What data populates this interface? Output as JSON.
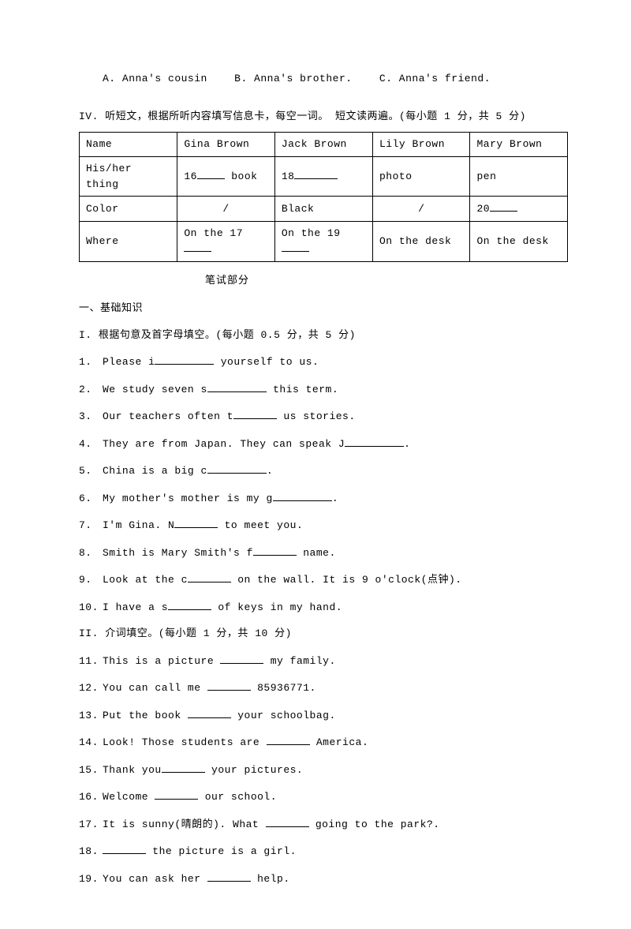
{
  "mc": {
    "optA": "A. Anna's cousin",
    "optB": "B. Anna's brother.",
    "optC": "C. Anna's friend."
  },
  "sectionIV": "IV. 听短文，根据所听内容填写信息卡，每空一词。 短文读两遍。(每小题 1 分，共 5 分)",
  "table": {
    "r0c0": "Name",
    "r0c1": "Gina Brown",
    "r0c2": "Jack Brown",
    "r0c3": "Lily Brown",
    "r0c4": "Mary Brown",
    "r1c0": "His/her thing",
    "r1c1a": "16",
    "r1c1b": " book",
    "r1c2a": "18",
    "r1c3": "photo",
    "r1c4": "pen",
    "r2c0": "Color",
    "r2c1": "/",
    "r2c2": "Black",
    "r2c3": "/",
    "r2c4a": "20",
    "r3c0": "Where",
    "r3c1a": "On the 17",
    "r3c2a": "On the 19",
    "r3c3": "On the desk",
    "r3c4": "On the desk"
  },
  "writtenTitle": "笔试部分",
  "partA": "一、基础知识",
  "partI": "I.  根据句意及首字母填空。(每小题 0.5 分，共 5 分)",
  "q": {
    "1n": "1.",
    "1a": "Please i",
    "1b": " yourself to us.",
    "2n": "2.",
    "2a": "We study seven s",
    "2b": " this term.",
    "3n": "3.",
    "3a": "Our teachers often t",
    "3b": " us stories.",
    "4n": "4.",
    "4a": "They are from Japan. They can speak J",
    "4b": ".",
    "5n": "5.",
    "5a": "China is a big c",
    "5b": ".",
    "6n": "6.",
    "6a": "My mother's mother is my g",
    "6b": ".",
    "7n": "7.",
    "7a": "I'm Gina. N",
    "7b": " to meet you.",
    "8n": "8.",
    "8a": "Smith is Mary Smith's f",
    "8b": " name.",
    "9n": "9.",
    "9a": "Look at the c",
    "9b": " on the wall. It is 9 o'clock(点钟).",
    "10n": "10.",
    "10a": "I have a s",
    "10b": " of keys in my hand."
  },
  "partII": "II. 介词填空。(每小题 1 分，共 10 分)",
  "p": {
    "11n": "11.",
    "11a": "This is a picture ",
    "11b": " my family.",
    "12n": "12.",
    "12a": "You can call me ",
    "12b": " 85936771.",
    "13n": "13.",
    "13a": "Put the book ",
    "13b": " your schoolbag.",
    "14n": "14.",
    "14a": "Look! Those students are ",
    "14b": " America.",
    "15n": "15.",
    "15a": "Thank you",
    "15b": " your pictures.",
    "16n": "16.",
    "16a": "Welcome ",
    "16b": " our school.",
    "17n": "17.",
    "17a": "It is sunny(晴朗的). What ",
    "17b": " going to the park?.",
    "18n": "18.",
    "18a": "",
    "18b": " the picture is a girl.",
    "19n": "19.",
    "19a": "You can ask her ",
    "19b": " help."
  }
}
